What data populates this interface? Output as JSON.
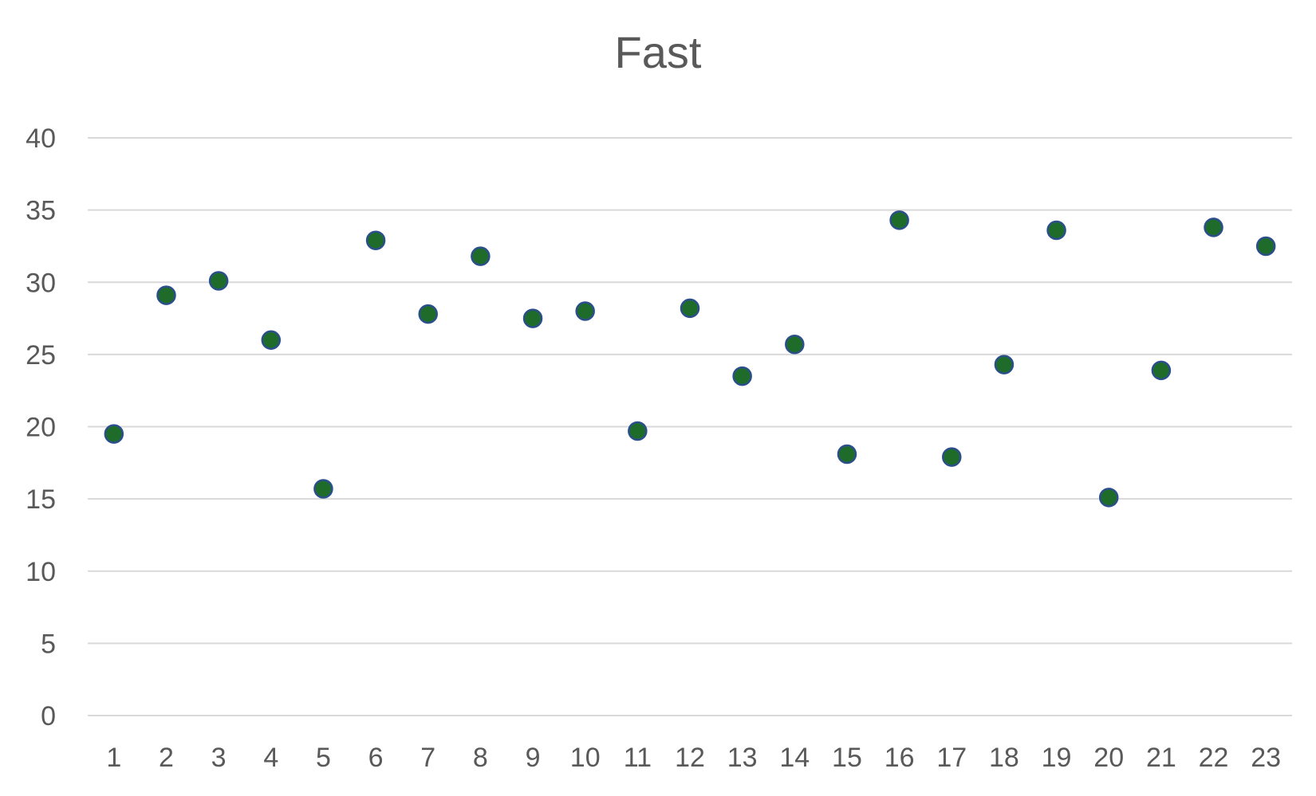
{
  "chart_data": {
    "type": "scatter",
    "title": "Fast",
    "xlabel": "",
    "ylabel": "",
    "x": [
      1,
      2,
      3,
      4,
      5,
      6,
      7,
      8,
      9,
      10,
      11,
      12,
      13,
      14,
      15,
      16,
      17,
      18,
      19,
      20,
      21,
      22,
      23
    ],
    "x_tick_labels": [
      "1",
      "2",
      "3",
      "4",
      "5",
      "6",
      "7",
      "8",
      "9",
      "10",
      "11",
      "12",
      "13",
      "14",
      "15",
      "16",
      "17",
      "18",
      "19",
      "20",
      "21",
      "22",
      "23"
    ],
    "y_tick_labels": [
      "0",
      "5",
      "10",
      "15",
      "20",
      "25",
      "30",
      "35",
      "40"
    ],
    "y_ticks": [
      0,
      5,
      10,
      15,
      20,
      25,
      30,
      35,
      40
    ],
    "ylim": [
      0,
      40
    ],
    "xlim": [
      0.5,
      23.5
    ],
    "grid": "horizontal",
    "legend": "none",
    "series": [
      {
        "values": [
          19.5,
          29.1,
          30.1,
          26.0,
          15.7,
          32.9,
          27.8,
          31.8,
          27.5,
          28.0,
          19.7,
          28.2,
          23.5,
          25.7,
          18.1,
          34.3,
          17.9,
          24.3,
          33.6,
          15.1,
          23.9,
          33.8,
          32.5
        ],
        "marker_color": "#1e6b2a",
        "marker_edge_color": "#2a4f8a"
      }
    ],
    "gridline_color": "#d9d9d9",
    "text_color": "#595959"
  }
}
